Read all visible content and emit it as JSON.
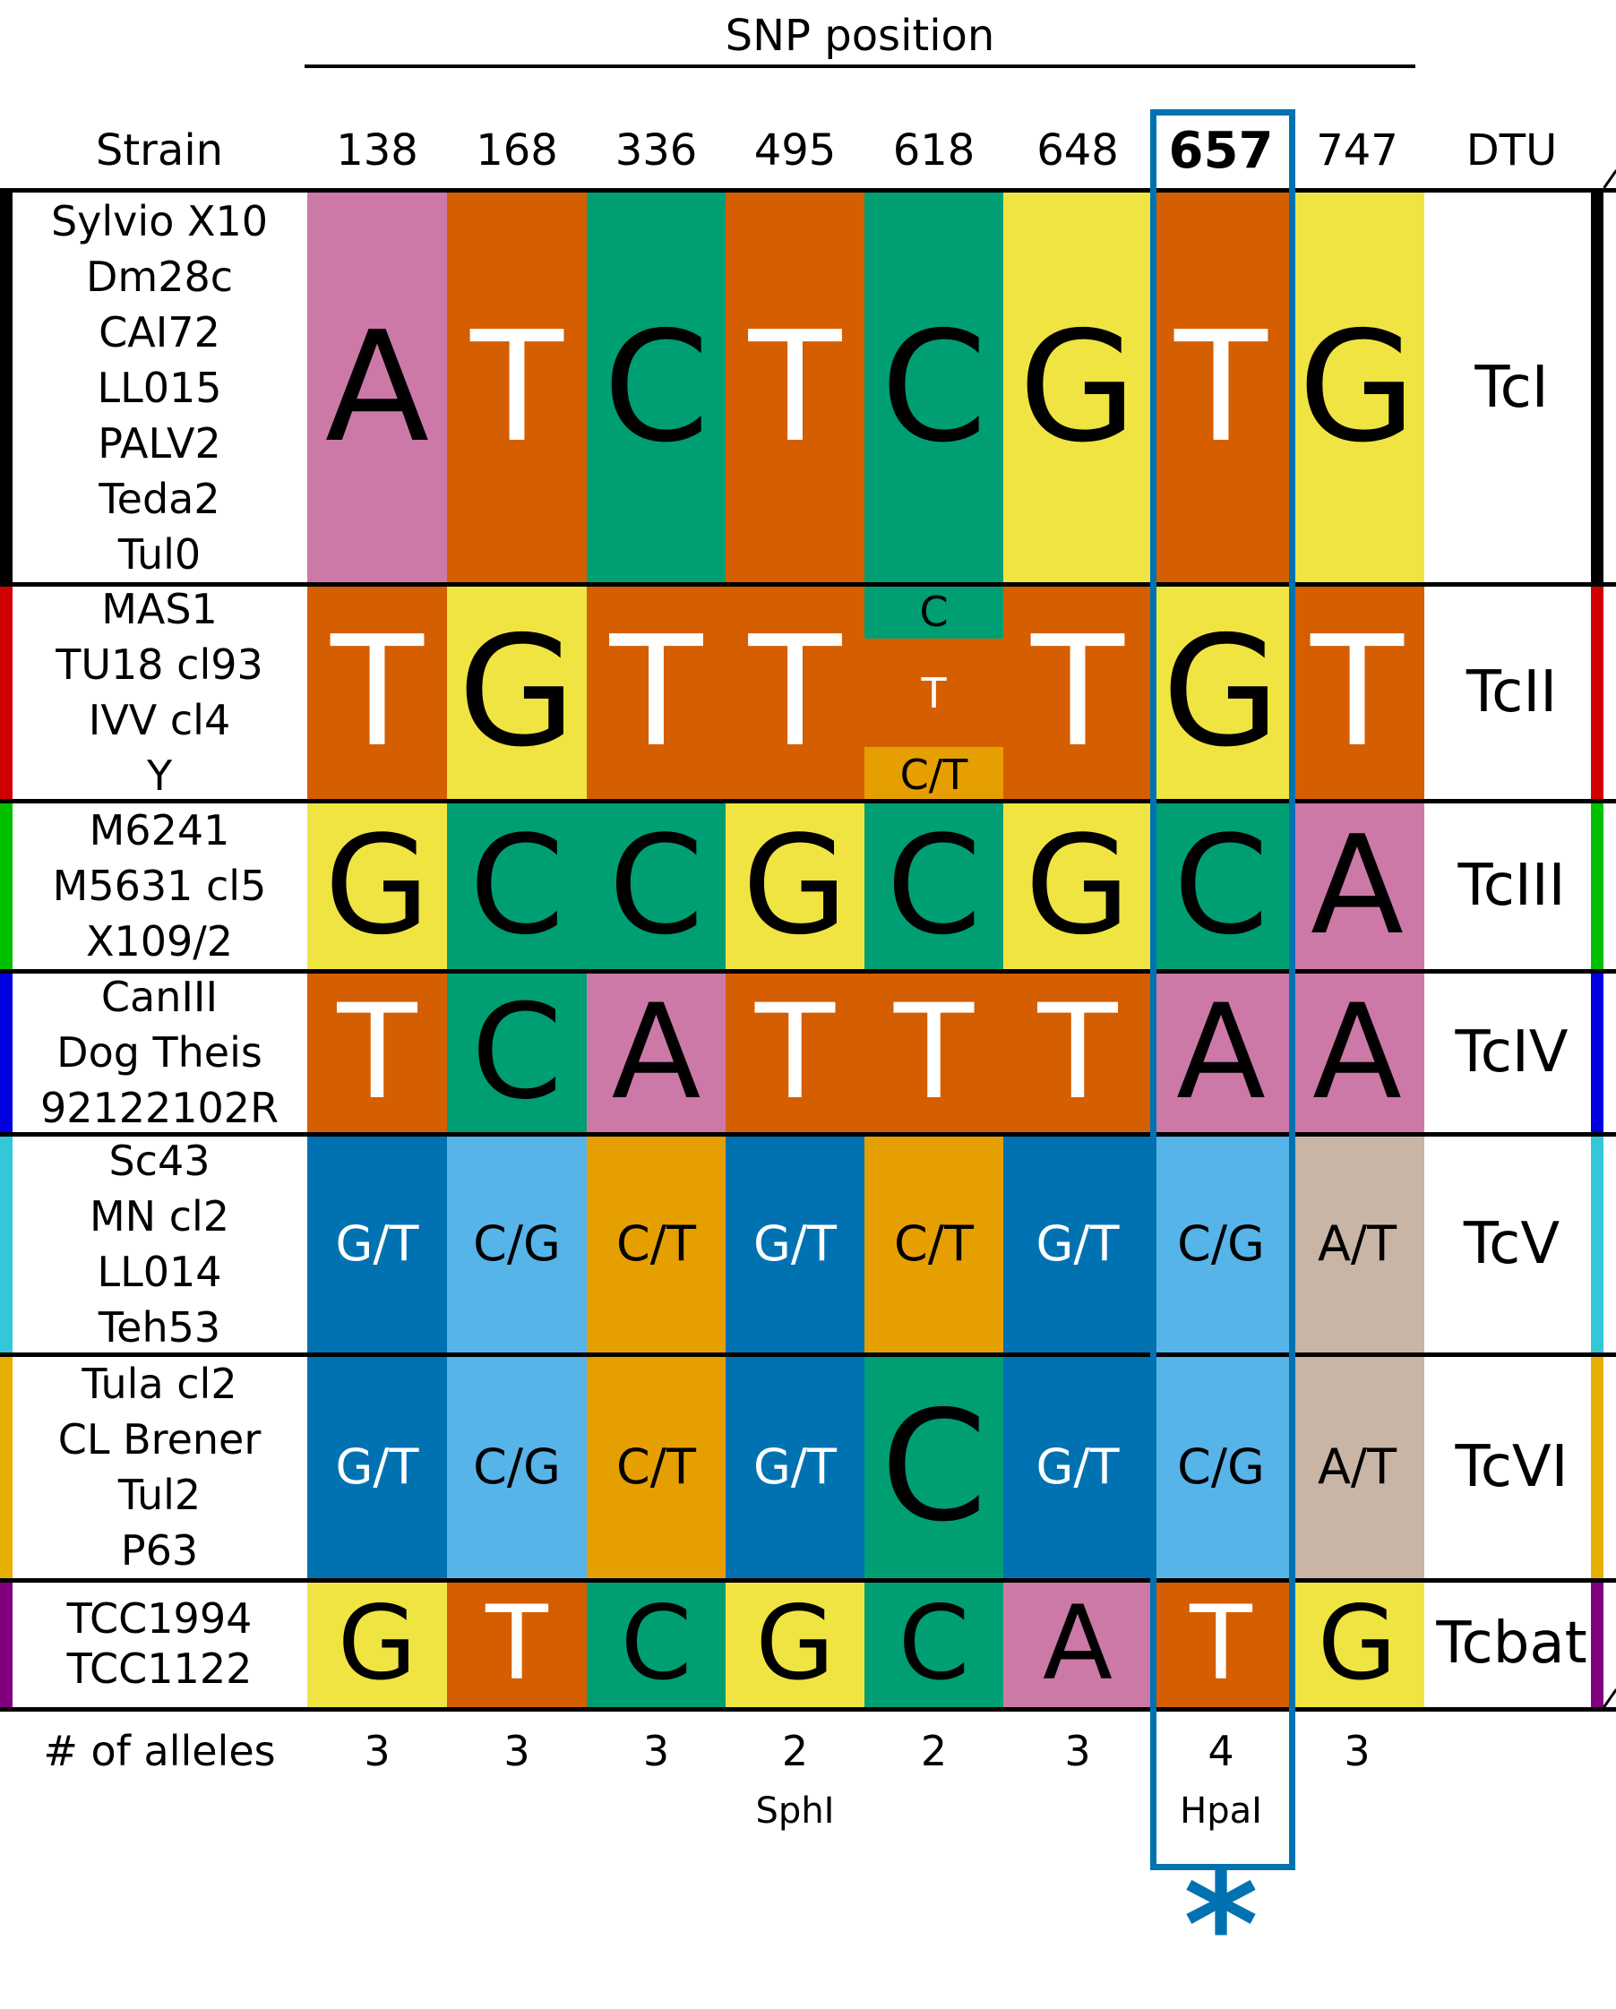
{
  "title": "SNP position",
  "header": {
    "strain_label": "Strain",
    "dtu_label": "DTU"
  },
  "positions": [
    "138",
    "168",
    "336",
    "495",
    "618",
    "648",
    "657",
    "747"
  ],
  "highlight_position": "657",
  "colors": {
    "pink": "#cc79a7",
    "orange": "#d55e00",
    "green": "#009e73",
    "yellow": "#f0e442",
    "blue": "#0072b2",
    "skyblue": "#56b4e9",
    "amber": "#e69f00",
    "tan": "#c8b5a6",
    "white": "#ffffff",
    "black": "#000000"
  },
  "groups": [
    {
      "dtu": "TcI",
      "bar_color": "#000000",
      "strains": [
        "Sylvio X10",
        "Dm28c",
        "CAI72",
        "LL015",
        "PALV2",
        "Teda2",
        "Tul0"
      ],
      "cells": [
        {
          "text": "A",
          "bg": "pink",
          "fg": "black",
          "size": "big"
        },
        {
          "text": "T",
          "bg": "orange",
          "fg": "white",
          "size": "big"
        },
        {
          "text": "C",
          "bg": "green",
          "fg": "black",
          "size": "big"
        },
        {
          "text": "T",
          "bg": "orange",
          "fg": "white",
          "size": "big"
        },
        {
          "text": "C",
          "bg": "green",
          "fg": "black",
          "size": "big"
        },
        {
          "text": "G",
          "bg": "yellow",
          "fg": "black",
          "size": "big"
        },
        {
          "text": "T",
          "bg": "orange",
          "fg": "white",
          "size": "big"
        },
        {
          "text": "G",
          "bg": "yellow",
          "fg": "black",
          "size": "big"
        }
      ]
    },
    {
      "dtu": "TcII",
      "bar_color": "#d00000",
      "strains": [
        "MAS1",
        "TU18 cl93",
        "IVV cl4",
        "Y"
      ],
      "cells": [
        {
          "text": "T",
          "bg": "orange",
          "fg": "white",
          "size": "big"
        },
        {
          "text": "G",
          "bg": "yellow",
          "fg": "black",
          "size": "big"
        },
        {
          "text": "T",
          "bg": "orange",
          "fg": "white",
          "size": "big"
        },
        {
          "text": "T",
          "bg": "orange",
          "fg": "white",
          "size": "big"
        },
        {
          "split": [
            {
              "text": "C",
              "bg": "green",
              "fg": "black",
              "frac": 0.25
            },
            {
              "text": "T",
              "bg": "orange",
              "fg": "white",
              "frac": 0.5
            },
            {
              "text": "C/T",
              "bg": "amber",
              "fg": "black",
              "frac": 0.25
            }
          ]
        },
        {
          "text": "T",
          "bg": "orange",
          "fg": "white",
          "size": "big"
        },
        {
          "text": "G",
          "bg": "yellow",
          "fg": "black",
          "size": "big"
        },
        {
          "text": "T",
          "bg": "orange",
          "fg": "white",
          "size": "big"
        }
      ]
    },
    {
      "dtu": "TcIII",
      "bar_color": "#00c000",
      "strains": [
        "M6241",
        "M5631 cl5",
        "X109/2"
      ],
      "cells": [
        {
          "text": "G",
          "bg": "yellow",
          "fg": "black",
          "size": "big"
        },
        {
          "text": "C",
          "bg": "green",
          "fg": "black",
          "size": "big"
        },
        {
          "text": "C",
          "bg": "green",
          "fg": "black",
          "size": "big"
        },
        {
          "text": "G",
          "bg": "yellow",
          "fg": "black",
          "size": "big"
        },
        {
          "text": "C",
          "bg": "green",
          "fg": "black",
          "size": "big"
        },
        {
          "text": "G",
          "bg": "yellow",
          "fg": "black",
          "size": "big"
        },
        {
          "text": "C",
          "bg": "green",
          "fg": "black",
          "size": "big"
        },
        {
          "text": "A",
          "bg": "pink",
          "fg": "black",
          "size": "big"
        }
      ]
    },
    {
      "dtu": "TcIV",
      "bar_color": "#0000e0",
      "strains": [
        "CanIII",
        "Dog Theis",
        "92122102R"
      ],
      "cells": [
        {
          "text": "T",
          "bg": "orange",
          "fg": "white",
          "size": "big"
        },
        {
          "text": "C",
          "bg": "green",
          "fg": "black",
          "size": "big"
        },
        {
          "text": "A",
          "bg": "pink",
          "fg": "black",
          "size": "big"
        },
        {
          "text": "T",
          "bg": "orange",
          "fg": "white",
          "size": "big"
        },
        {
          "text": "T",
          "bg": "orange",
          "fg": "white",
          "size": "big"
        },
        {
          "text": "T",
          "bg": "orange",
          "fg": "white",
          "size": "big"
        },
        {
          "text": "A",
          "bg": "pink",
          "fg": "black",
          "size": "big"
        },
        {
          "text": "A",
          "bg": "pink",
          "fg": "black",
          "size": "big"
        }
      ]
    },
    {
      "dtu": "TcV",
      "bar_color": "#33c8d8",
      "strains": [
        "Sc43",
        "MN cl2",
        "LL014",
        "Teh53"
      ],
      "cells": [
        {
          "text": "G/T",
          "bg": "blue",
          "fg": "white",
          "size": "small"
        },
        {
          "text": "C/G",
          "bg": "skyblue",
          "fg": "black",
          "size": "small"
        },
        {
          "text": "C/T",
          "bg": "amber",
          "fg": "black",
          "size": "small"
        },
        {
          "text": "G/T",
          "bg": "blue",
          "fg": "white",
          "size": "small"
        },
        {
          "text": "C/T",
          "bg": "amber",
          "fg": "black",
          "size": "small"
        },
        {
          "text": "G/T",
          "bg": "blue",
          "fg": "white",
          "size": "small"
        },
        {
          "text": "C/G",
          "bg": "skyblue",
          "fg": "black",
          "size": "small"
        },
        {
          "text": "A/T",
          "bg": "tan",
          "fg": "black",
          "size": "small"
        }
      ]
    },
    {
      "dtu": "TcVI",
      "bar_color": "#e6b000",
      "strains": [
        "Tula cl2",
        "CL Brener",
        "Tul2",
        "P63"
      ],
      "cells": [
        {
          "text": "G/T",
          "bg": "blue",
          "fg": "white",
          "size": "small"
        },
        {
          "text": "C/G",
          "bg": "skyblue",
          "fg": "black",
          "size": "small"
        },
        {
          "text": "C/T",
          "bg": "amber",
          "fg": "black",
          "size": "small"
        },
        {
          "text": "G/T",
          "bg": "blue",
          "fg": "white",
          "size": "small"
        },
        {
          "text": "C",
          "bg": "green",
          "fg": "black",
          "size": "big"
        },
        {
          "text": "G/T",
          "bg": "blue",
          "fg": "white",
          "size": "small"
        },
        {
          "text": "C/G",
          "bg": "skyblue",
          "fg": "black",
          "size": "small"
        },
        {
          "text": "A/T",
          "bg": "tan",
          "fg": "black",
          "size": "small"
        }
      ]
    },
    {
      "dtu": "Tcbat",
      "bar_color": "#800080",
      "strains": [
        "TCC1994",
        "TCC1122"
      ],
      "cells": [
        {
          "text": "G",
          "bg": "yellow",
          "fg": "black",
          "size": "big"
        },
        {
          "text": "T",
          "bg": "orange",
          "fg": "white",
          "size": "big"
        },
        {
          "text": "C",
          "bg": "green",
          "fg": "black",
          "size": "big"
        },
        {
          "text": "G",
          "bg": "yellow",
          "fg": "black",
          "size": "big"
        },
        {
          "text": "C",
          "bg": "green",
          "fg": "black",
          "size": "big"
        },
        {
          "text": "A",
          "bg": "pink",
          "fg": "black",
          "size": "big"
        },
        {
          "text": "T",
          "bg": "orange",
          "fg": "white",
          "size": "big"
        },
        {
          "text": "G",
          "bg": "yellow",
          "fg": "black",
          "size": "big"
        }
      ]
    }
  ],
  "footer": {
    "label": "# of alleles",
    "alleles": [
      "3",
      "3",
      "3",
      "2",
      "2",
      "3",
      "4",
      "3"
    ]
  },
  "enzymes": [
    {
      "position": "495",
      "name": "SphI"
    },
    {
      "position": "657",
      "name": "HpaI"
    }
  ],
  "marker": "*"
}
